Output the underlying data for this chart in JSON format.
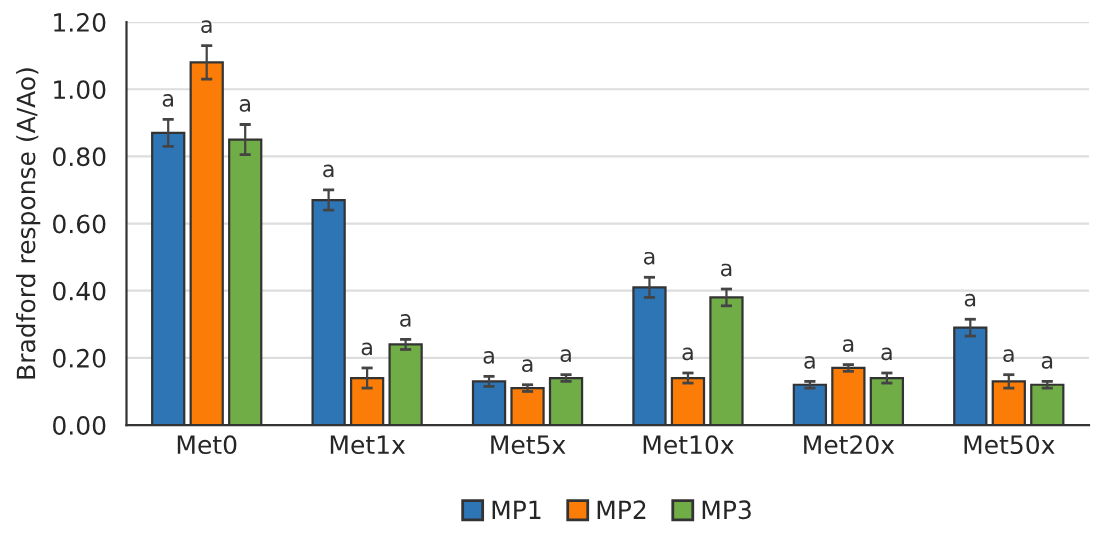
{
  "chart_data": {
    "type": "bar",
    "ylabel": "Bradford response (A/Ao)",
    "categories": [
      "Met0",
      "Met1x",
      "Met5x",
      "Met10x",
      "Met20x",
      "Met50x"
    ],
    "series": [
      {
        "name": "MP1",
        "color": "#2e75b6",
        "values": [
          0.87,
          0.67,
          0.13,
          0.41,
          0.12,
          0.29
        ],
        "errors": [
          0.04,
          0.03,
          0.015,
          0.03,
          0.01,
          0.025
        ],
        "value_labels": [
          "a",
          "a",
          "a",
          "a",
          "a",
          "a"
        ]
      },
      {
        "name": "MP2",
        "color": "#fb7d07",
        "values": [
          1.08,
          0.14,
          0.11,
          0.14,
          0.17,
          0.13
        ],
        "errors": [
          0.05,
          0.03,
          0.01,
          0.015,
          0.01,
          0.02
        ],
        "value_labels": [
          "a",
          "a",
          "a",
          "a",
          "a",
          "a"
        ]
      },
      {
        "name": "MP3",
        "color": "#70ad47",
        "values": [
          0.85,
          0.24,
          0.14,
          0.38,
          0.14,
          0.12
        ],
        "errors": [
          0.045,
          0.015,
          0.01,
          0.025,
          0.015,
          0.01
        ],
        "value_labels": [
          "a",
          "a",
          "a",
          "a",
          "a",
          "a"
        ]
      }
    ],
    "ylim": [
      0,
      1.2
    ],
    "yticks": [
      {
        "value": 0,
        "label": "0.00"
      },
      {
        "value": 0.2,
        "label": "0.20"
      },
      {
        "value": 0.4,
        "label": "0.40"
      },
      {
        "value": 0.6,
        "label": "0.60"
      },
      {
        "value": 0.8,
        "label": "0.80"
      },
      {
        "value": 1.0,
        "label": "1.00"
      },
      {
        "value": 1.2,
        "label": "1.20"
      }
    ],
    "grid": "y",
    "legend": "bottom"
  }
}
